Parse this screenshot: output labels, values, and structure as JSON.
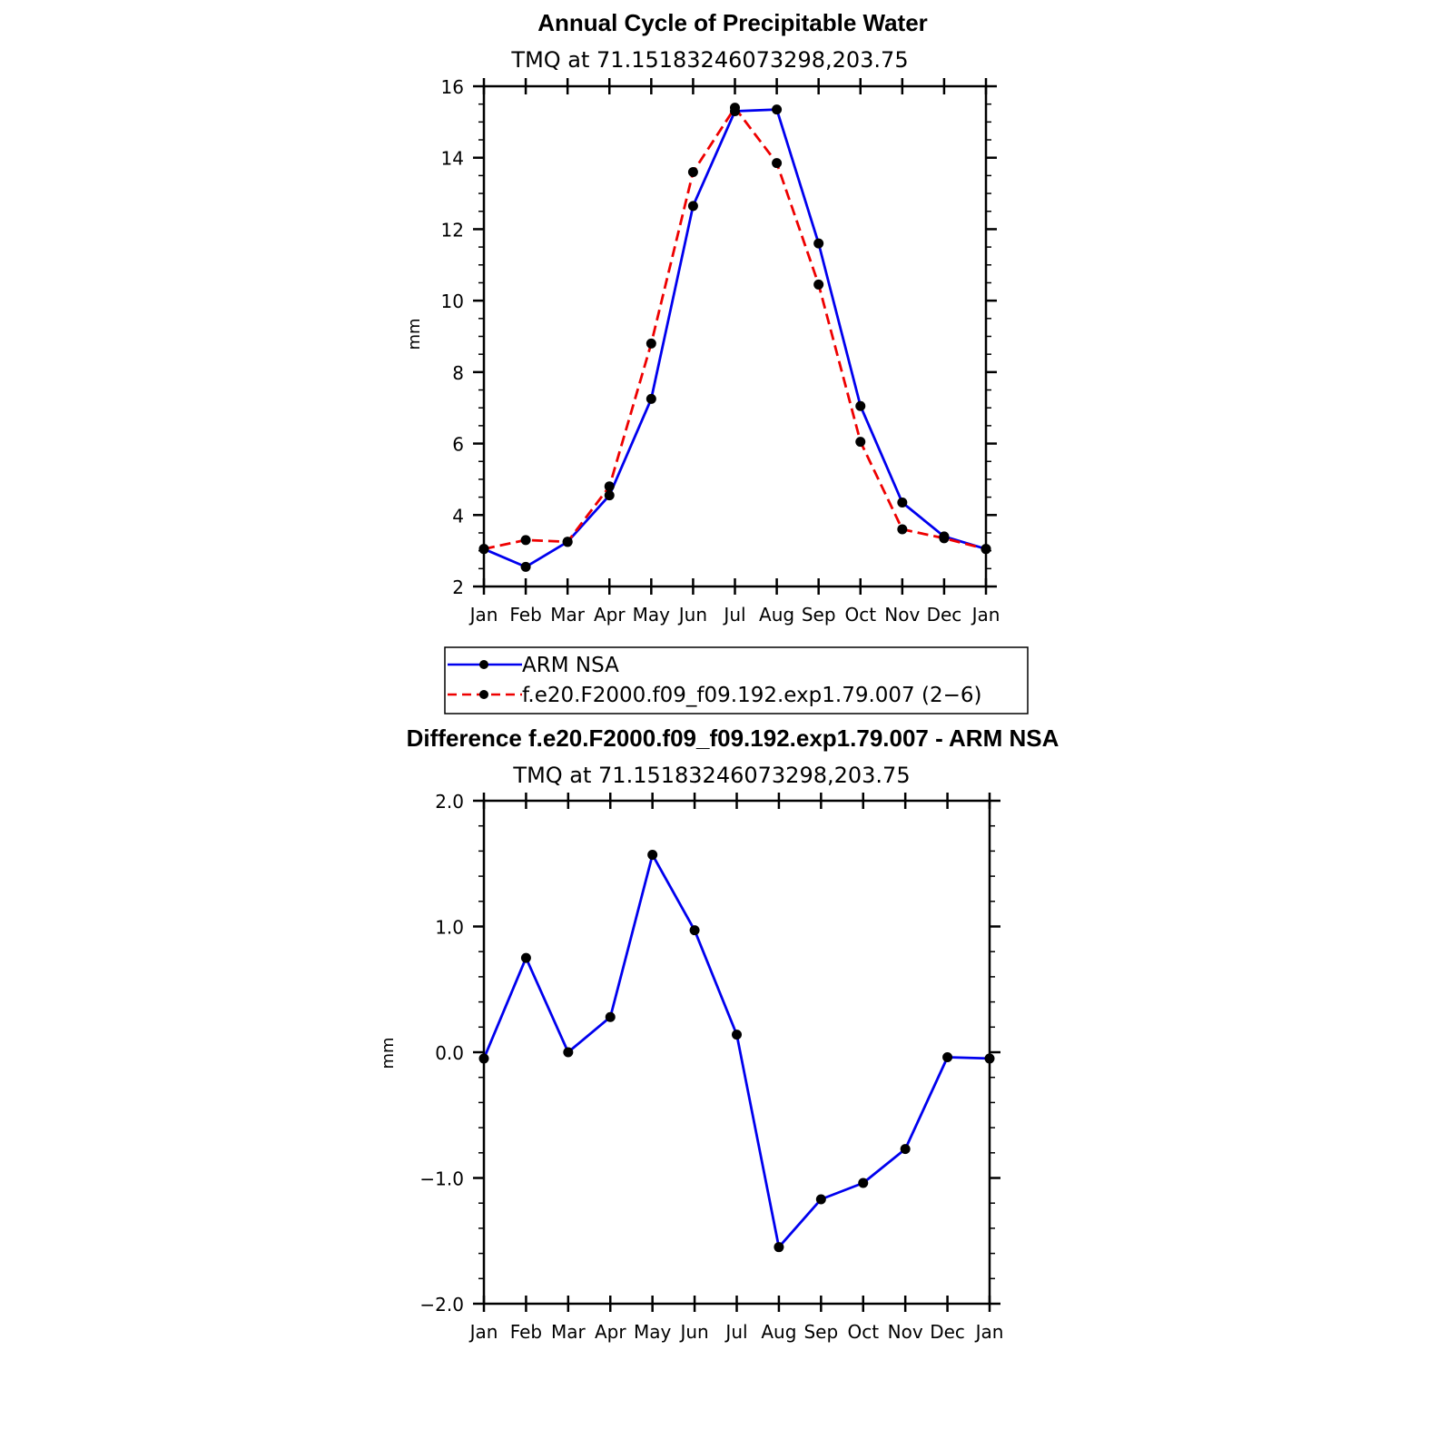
{
  "chart_data": [
    {
      "type": "line",
      "title": "Annual Cycle of Precipitable Water",
      "subtitle": "TMQ  at  71.15183246073298,203.75",
      "xlabel": "",
      "ylabel": "mm",
      "categories": [
        "Jan",
        "Feb",
        "Mar",
        "Apr",
        "May",
        "Jun",
        "Jul",
        "Aug",
        "Sep",
        "Oct",
        "Nov",
        "Dec",
        "Jan"
      ],
      "ylim": [
        2,
        16
      ],
      "yticks": [
        2,
        4,
        6,
        8,
        10,
        12,
        14,
        16
      ],
      "ytick_labels": [
        "2",
        "4",
        "6",
        "8",
        "10",
        "12",
        "14",
        "16"
      ],
      "series": [
        {
          "name": "ARM  NSA",
          "color": "#0000ee",
          "dash": "solid",
          "values": [
            3.05,
            2.55,
            3.25,
            4.55,
            7.25,
            12.65,
            15.3,
            15.35,
            11.6,
            7.05,
            4.35,
            3.4,
            3.05
          ]
        },
        {
          "name": "f.e20.F2000.f09_f09.192.exp1.79.007  (2−6)",
          "color": "#ee0000",
          "dash": "dashed",
          "values": [
            3.05,
            3.3,
            3.25,
            4.8,
            8.8,
            13.6,
            15.4,
            13.85,
            10.45,
            6.05,
            3.6,
            3.35,
            3.05
          ]
        }
      ],
      "legend": {
        "position": "bottom-left",
        "entries": [
          "ARM  NSA",
          "f.e20.F2000.f09_f09.192.exp1.79.007  (2−6)"
        ]
      }
    },
    {
      "type": "line",
      "title": "Difference f.e20.F2000.f09_f09.192.exp1.79.007 - ARM NSA",
      "subtitle": "TMQ  at  71.15183246073298,203.75",
      "xlabel": "",
      "ylabel": "mm",
      "categories": [
        "Jan",
        "Feb",
        "Mar",
        "Apr",
        "May",
        "Jun",
        "Jul",
        "Aug",
        "Sep",
        "Oct",
        "Nov",
        "Dec",
        "Jan"
      ],
      "ylim": [
        -2,
        2
      ],
      "yticks": [
        -2,
        -1,
        0,
        1,
        2
      ],
      "ytick_labels": [
        "−2.0",
        "−1.0",
        "0.0",
        "1.0",
        "2.0"
      ],
      "series": [
        {
          "name": "Difference",
          "color": "#0000ee",
          "dash": "solid",
          "values": [
            -0.05,
            0.75,
            0.0,
            0.28,
            1.57,
            0.97,
            0.14,
            -1.55,
            -1.17,
            -1.04,
            -0.77,
            -0.04,
            -0.05
          ]
        }
      ]
    }
  ]
}
